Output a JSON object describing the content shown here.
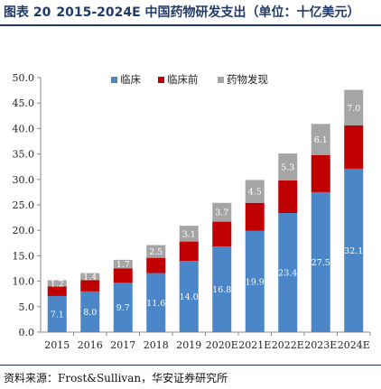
{
  "header": {
    "figure_label": "图表 20",
    "title": "2015-2024E 中国药物研发支出（单位：十亿美元）"
  },
  "footer": {
    "source": "资料来源：Frost&Sullivan，华安证券研究所"
  },
  "chart_data": {
    "type": "bar",
    "stacked": true,
    "title": "2015-2024E 中国药物研发支出（单位：十亿美元）",
    "categories": [
      "2015",
      "2016",
      "2017",
      "2018",
      "2019",
      "2020E",
      "2021E",
      "2022E",
      "2023E",
      "2024E"
    ],
    "series": [
      {
        "name": "临床",
        "color": "#4a86c8",
        "values": [
          7.1,
          8.0,
          9.7,
          11.6,
          14.0,
          16.8,
          19.9,
          23.4,
          27.5,
          32.1
        ]
      },
      {
        "name": "临床前",
        "color": "#c00000",
        "values": [
          1.9,
          2.2,
          2.8,
          3.0,
          3.8,
          4.9,
          5.5,
          6.4,
          7.3,
          8.5
        ]
      },
      {
        "name": "药物发现",
        "color": "#a5a5a5",
        "values": [
          1.2,
          1.4,
          1.7,
          2.5,
          3.1,
          3.7,
          4.5,
          5.3,
          6.1,
          7.0
        ]
      }
    ],
    "data_labels": {
      "临床": [
        "7.1",
        "8.0",
        "9.7",
        "11.6",
        "14.0",
        "16.8",
        "19.9",
        "23.4",
        "27.5",
        "32.1"
      ],
      "药物发现": [
        "1.2",
        "1.4",
        "1.7",
        "2.5",
        "3.1",
        "3.7",
        "4.5",
        "5.3",
        "6.1",
        "7.0"
      ]
    },
    "ylim": [
      0,
      50
    ],
    "yticks": [
      "0.0",
      "5.0",
      "10.0",
      "15.0",
      "20.0",
      "25.0",
      "30.0",
      "35.0",
      "40.0",
      "45.0",
      "50.0"
    ],
    "xlabel": "",
    "ylabel": "",
    "legend_position": "top",
    "grid": false
  }
}
